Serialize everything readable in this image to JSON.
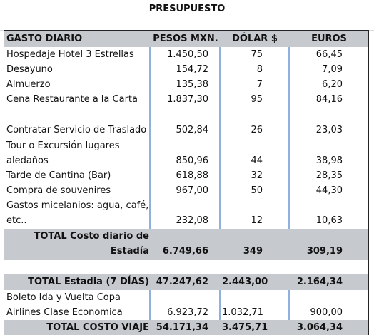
{
  "title": "PRESUPUESTO",
  "headers": [
    "GASTO DIARIO",
    "PESOS MXN.",
    "DÓLAR $",
    "EUROS"
  ],
  "rows": [
    {
      "label": [
        "Hospedaje Hotel 3 Estrellas"
      ],
      "pesos": "1.450,50",
      "dolar": "75",
      "euros": "66,45"
    },
    {
      "label": [
        "Desayuno"
      ],
      "pesos": "154,72",
      "dolar": "8",
      "euros": "7,09"
    },
    {
      "label": [
        "Almuerzo"
      ],
      "pesos": "135,38",
      "dolar": "7",
      "euros": "6,20"
    },
    {
      "label": [
        "Cena  Restaurante a la Carta"
      ],
      "pesos": "1.837,30",
      "dolar": "95",
      "euros": "84,16"
    },
    {
      "label": [
        "Contratar Servicio de Traslado"
      ],
      "pesos": "502,84",
      "dolar": "26",
      "euros": "23,03"
    },
    {
      "label": [
        "Tour o Excursión lugares",
        "aledaños"
      ],
      "pesos": "850,96",
      "dolar": "44",
      "euros": "38,98"
    },
    {
      "label": [
        "Tarde de Cantina (Bar)"
      ],
      "pesos": "618,88",
      "dolar": "32",
      "euros": "28,35"
    },
    {
      "label": [
        "Compra de souvenires"
      ],
      "pesos": "967,00",
      "dolar": "50",
      "euros": "44,30"
    },
    {
      "label": [
        "Gastos micelanios: agua, café,",
        "etc.."
      ],
      "pesos": "232,08",
      "dolar": "12",
      "euros": "10,63"
    }
  ],
  "total_daily": {
    "label": [
      "TOTAL Costo diario de",
      "Estadía"
    ],
    "pesos": "6.749,66",
    "dolar": "349",
    "euros": "309,19"
  },
  "total_stay": {
    "label": "TOTAL Estadia  (7 DÍAS)",
    "pesos": "47.247,62",
    "dolar": "2.443,00",
    "euros": "2.164,34"
  },
  "flight": {
    "label": [
      "Boleto Ida y Vuelta Copa",
      "Airlines Clase Economica"
    ],
    "pesos": "6.923,72",
    "dolar": "1.032,71",
    "euros": "900,00"
  },
  "total_trip": {
    "label": "TOTAL COSTO  VIAJE",
    "pesos": "54.171,34",
    "dolar": "3.475,71",
    "euros": "3.064,34"
  }
}
